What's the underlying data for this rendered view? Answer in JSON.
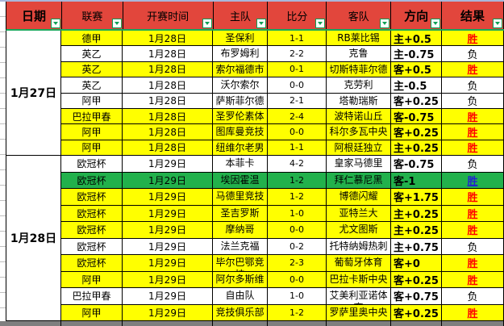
{
  "header": {
    "columns": [
      {
        "id": "date",
        "label": "日期"
      },
      {
        "id": "league",
        "label": "联赛"
      },
      {
        "id": "time",
        "label": "开赛时间"
      },
      {
        "id": "home",
        "label": "主队"
      },
      {
        "id": "score",
        "label": "比分"
      },
      {
        "id": "away",
        "label": "客队"
      },
      {
        "id": "direction",
        "label": "方向"
      },
      {
        "id": "result",
        "label": "结果"
      }
    ]
  },
  "groups": [
    {
      "date": "1月27日",
      "rows": [
        {
          "league": "德甲",
          "time": "1月28日",
          "home": "圣保利",
          "score": "1-1",
          "away": "RB莱比锡",
          "direction": "主+0.5",
          "result": "胜",
          "result_style": "win",
          "bg": "yellow"
        },
        {
          "league": "英乙",
          "time": "1月28日",
          "home": "布罗姆利",
          "score": "2-2",
          "away": "克鲁",
          "direction": "主-0.75",
          "result": "负",
          "result_style": "lose",
          "bg": "white"
        },
        {
          "league": "英乙",
          "time": "1月28日",
          "home": "索尔福德市",
          "score": "0-1",
          "away": "切斯特菲尔德",
          "direction": "客+0.5",
          "result": "胜",
          "result_style": "win",
          "bg": "yellow"
        },
        {
          "league": "英乙",
          "time": "1月28日",
          "home": "沃尔索尔",
          "score": "0-0",
          "away": "克劳利",
          "direction": "主-0.5",
          "result": "负",
          "result_style": "lose",
          "bg": "white"
        },
        {
          "league": "阿甲",
          "time": "1月28日",
          "home": "萨斯菲尔德",
          "score": "2-1",
          "away": "塔勒瑞斯",
          "direction": "客+0.25",
          "result": "负",
          "result_style": "lose",
          "bg": "white"
        },
        {
          "league": "巴拉甲春",
          "time": "1月28日",
          "home": "圣罗伦素体育",
          "score": "2-4",
          "away": "波特诺山丘",
          "direction": "客-0.75",
          "result": "胜",
          "result_style": "win",
          "bg": "yellow"
        },
        {
          "league": "阿甲",
          "time": "1月28日",
          "home": "图库曼竞技",
          "score": "0-0",
          "away": "科尔多瓦中央",
          "direction": "客+0.25",
          "result": "胜",
          "result_style": "win",
          "bg": "yellow"
        },
        {
          "league": "阿甲",
          "time": "1月28日",
          "home": "纽维尔老男孩",
          "score": "1-1",
          "away": "阿根廷独立",
          "direction": "主+0.25",
          "result": "胜",
          "result_style": "win",
          "bg": "yellow"
        }
      ]
    },
    {
      "date": "1月28日",
      "rows": [
        {
          "league": "欧冠杯",
          "time": "1月29日",
          "home": "本菲卡",
          "score": "4-2",
          "away": "皇家马德里",
          "direction": "客-0.75",
          "result": "负",
          "result_style": "lose",
          "bg": "white"
        },
        {
          "league": "欧冠杯",
          "time": "1月29日",
          "home": "埃因霍温",
          "score": "1-2",
          "away": "拜仁慕尼黑",
          "direction": "客-1",
          "result": "胜",
          "result_style": "win-blue",
          "bg": "green"
        },
        {
          "league": "欧冠杯",
          "time": "1月29日",
          "home": "马德里竞技",
          "score": "1-2",
          "away": "博德闪耀",
          "direction": "客+1.75",
          "result": "胜",
          "result_style": "win",
          "bg": "yellow"
        },
        {
          "league": "欧冠杯",
          "time": "1月29日",
          "home": "圣吉罗斯",
          "score": "1-0",
          "away": "亚特兰大",
          "direction": "主+0.25",
          "result": "胜",
          "result_style": "win",
          "bg": "yellow"
        },
        {
          "league": "欧冠杯",
          "time": "1月29日",
          "home": "摩纳哥",
          "score": "0-0",
          "away": "尤文图斯",
          "direction": "主+0.25",
          "result": "胜",
          "result_style": "win",
          "bg": "yellow"
        },
        {
          "league": "欧冠杯",
          "time": "1月29日",
          "home": "法兰克福",
          "score": "0-2",
          "away": "托特纳姆热刺",
          "direction": "主+0.75",
          "result": "负",
          "result_style": "lose",
          "bg": "white"
        },
        {
          "league": "欧冠杯",
          "time": "1月29日",
          "home": "毕尔巴鄂竞技",
          "score": "2-3",
          "away": "葡萄牙体育",
          "direction": "客+0",
          "result": "胜",
          "result_style": "win",
          "bg": "yellow"
        },
        {
          "league": "阿甲",
          "time": "1月29日",
          "home": "阿尔多斯维",
          "score": "0-0",
          "away": "巴拉卡斯中央",
          "direction": "客+0.25",
          "result": "胜",
          "result_style": "win",
          "bg": "yellow"
        },
        {
          "league": "巴拉甲春",
          "time": "1月29日",
          "home": "自由队",
          "score": "1-0",
          "away": "艾美利亚诺体育",
          "direction": "客+0.75",
          "result": "负",
          "result_style": "lose",
          "bg": "white"
        },
        {
          "league": "阿甲",
          "time": "1月29日",
          "home": "竞技俱乐部",
          "score": "1-2",
          "away": "罗萨里奥中央",
          "direction": "客+0.25",
          "result": "胜",
          "result_style": "win",
          "bg": "yellow"
        }
      ]
    }
  ],
  "colors": {
    "header_bg": "#e2463c",
    "header_underline": "#17a85b",
    "row_yellow": "#ffff00",
    "row_green": "#22b14c",
    "result_win": "#ff0000",
    "result_win_alt": "#2222d0",
    "filter_green": "#0fa055",
    "bottom_strip": "#7f7f7f"
  },
  "icons": {
    "filter_dropdown": "filter-dropdown-icon"
  }
}
